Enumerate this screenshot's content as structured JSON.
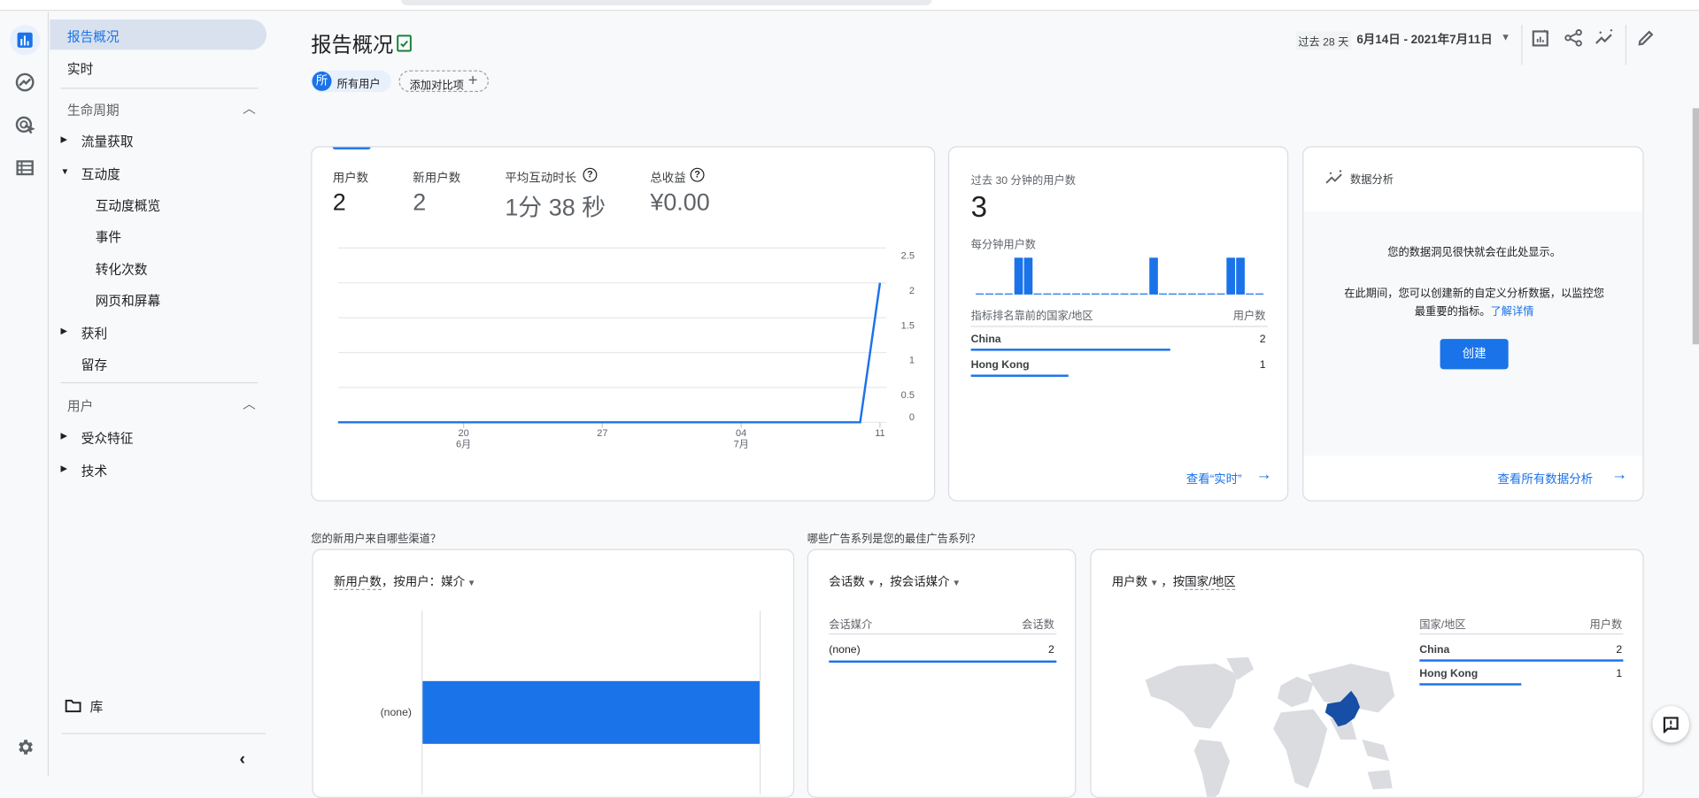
{
  "colors": {
    "accent": "#1a73e8",
    "map_highlight": "#174ea6",
    "verified": "#188038"
  },
  "nav": {
    "report_overview": "报告概况",
    "realtime": "实时",
    "lifecycle": {
      "title": "生命周期",
      "items": [
        {
          "label": "流量获取",
          "expandable": true,
          "expanded": false
        },
        {
          "label": "互动度",
          "expandable": true,
          "expanded": true,
          "children": [
            "互动度概览",
            "事件",
            "转化次数",
            "网页和屏幕"
          ]
        },
        {
          "label": "获利",
          "expandable": true,
          "expanded": false
        },
        {
          "label": "留存",
          "expandable": false
        }
      ]
    },
    "user": {
      "title": "用户",
      "items": [
        {
          "label": "受众特征"
        },
        {
          "label": "技术"
        }
      ]
    },
    "library": "库"
  },
  "rail_icons": [
    "reports-icon",
    "explore-icon",
    "advertising-icon",
    "configure-icon",
    "settings-icon"
  ],
  "header": {
    "title": "报告概况",
    "segment_badge": "所",
    "segment": "所有用户",
    "add_comparison": "添加对比项",
    "date_preset": "过去 28 天",
    "date_range": "6月14日 - 2021年7月11日"
  },
  "metrics": [
    {
      "label": "用户数",
      "value": "2",
      "help": false
    },
    {
      "label": "新用户数",
      "value": "2",
      "help": false
    },
    {
      "label": "平均互动时长",
      "value": "1分 38 秒",
      "help": true
    },
    {
      "label": "总收益",
      "value": "¥0.00",
      "help": true
    }
  ],
  "chart_data": [
    {
      "type": "line",
      "series": [
        {
          "values": [
            0,
            0,
            0,
            0,
            0,
            0,
            0,
            0,
            0,
            0,
            0,
            0,
            0,
            0,
            0,
            0,
            0,
            0,
            0,
            0,
            0,
            0,
            0,
            0,
            0,
            0,
            0,
            2
          ]
        }
      ],
      "x": [
        "2021-06-14",
        "2021-06-15",
        "2021-06-16",
        "2021-06-17",
        "2021-06-18",
        "2021-06-19",
        "2021-06-20",
        "2021-06-21",
        "2021-06-22",
        "2021-06-23",
        "2021-06-24",
        "2021-06-25",
        "2021-06-26",
        "2021-06-27",
        "2021-06-28",
        "2021-06-29",
        "2021-06-30",
        "2021-07-01",
        "2021-07-02",
        "2021-07-03",
        "2021-07-04",
        "2021-07-05",
        "2021-07-06",
        "2021-07-07",
        "2021-07-08",
        "2021-07-09",
        "2021-07-10",
        "2021-07-11"
      ],
      "xticks": [
        {
          "day": "20",
          "month": "6月"
        },
        {
          "day": "27",
          "month": ""
        },
        {
          "day": "04",
          "month": "7月"
        },
        {
          "day": "11",
          "month": ""
        }
      ],
      "yticks": [
        "2.5",
        "2",
        "1.5",
        "1",
        "0.5",
        "0"
      ],
      "ylim": [
        0,
        2.5
      ],
      "grid": true
    },
    {
      "type": "bar",
      "title": "每分钟用户数",
      "values": [
        0,
        0,
        0,
        0,
        1,
        1,
        0,
        0,
        0,
        0,
        0,
        0,
        0,
        0,
        0,
        0,
        0,
        0,
        1,
        0,
        0,
        0,
        0,
        0,
        0,
        0,
        1,
        1,
        0,
        0
      ]
    },
    {
      "type": "bar",
      "orientation": "horizontal",
      "categories": [
        "(none)"
      ],
      "values": [
        2
      ]
    }
  ],
  "realtime": {
    "title": "过去 30 分钟的用户数",
    "value": "3",
    "per_minute": "每分钟用户数",
    "col_country": "指标排名靠前的国家/地区",
    "col_users": "用户数",
    "rows": [
      {
        "country": "China",
        "users": "2",
        "share": 0.67
      },
      {
        "country": "Hong Kong",
        "users": "1",
        "share": 0.33
      }
    ],
    "link": "查看“实时”"
  },
  "insights": {
    "title": "数据分析",
    "line1": "您的数据洞见很快就会在此处显示。",
    "line2": "在此期间，您可以创建新的自定义分析数据，以监控您",
    "line3": "最重要的指标。",
    "learn_more": "了解详情",
    "create": "创建",
    "view_all": "查看所有数据分析"
  },
  "q1": "您的新用户来自哪些渠道？",
  "q2": "哪些广告系列是您的最佳广告系列？",
  "new_users_card": {
    "metric": "新用户数",
    "by": "，按用户：媒介",
    "bar_label": "(none)"
  },
  "sessions_card": {
    "metric": "会话数",
    "by": "，按会话媒介",
    "col1": "会话媒介",
    "col2": "会话数",
    "rows": [
      {
        "label": "(none)",
        "value": "2",
        "share": 1
      }
    ]
  },
  "country_card": {
    "metric": "用户数",
    "by1": "，按",
    "by2": "国家/地区",
    "col1": "国家/地区",
    "col2": "用户数",
    "rows": [
      {
        "country": "China",
        "users": "2",
        "share": 1
      },
      {
        "country": "Hong Kong",
        "users": "1",
        "share": 0.5
      }
    ]
  }
}
